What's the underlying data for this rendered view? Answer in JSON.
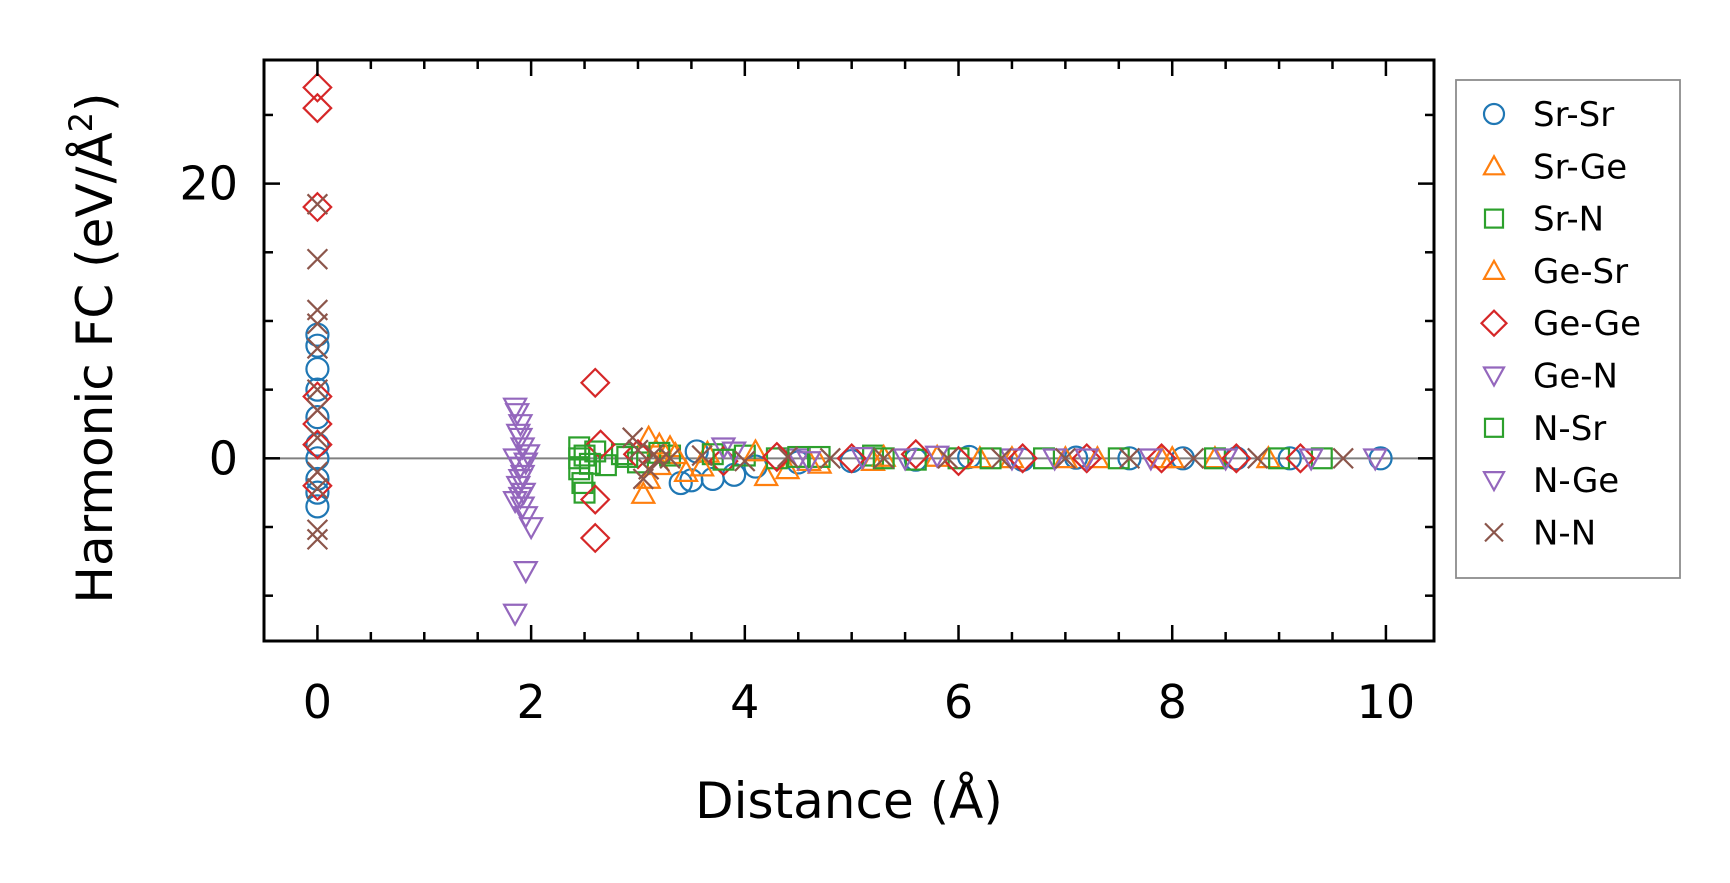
{
  "chart_data": {
    "type": "scatter",
    "title": "",
    "xlabel": "Distance (Å)",
    "ylabel_main": "Harmonic FC (eV/Å",
    "ylabel_sup": "2",
    "ylabel_close": ")",
    "xlim": [
      -0.5,
      10.45
    ],
    "ylim": [
      -13.3,
      29
    ],
    "xticks": [
      0,
      2,
      4,
      6,
      8,
      10
    ],
    "yticks": [
      0,
      20
    ],
    "xtick_labels": [
      "0",
      "2",
      "4",
      "6",
      "8",
      "10"
    ],
    "ytick_labels": [
      "0",
      "20"
    ],
    "zero_line": true,
    "grid": false,
    "legend_position": "outside-right",
    "series": [
      {
        "name": "Sr-Sr",
        "marker": "circle",
        "color": "#1f77b4",
        "points": [
          [
            0,
            9
          ],
          [
            0,
            8.2
          ],
          [
            0,
            6.5
          ],
          [
            0,
            5
          ],
          [
            0,
            3
          ],
          [
            0,
            1
          ],
          [
            0,
            0
          ],
          [
            0,
            -1.5
          ],
          [
            0,
            -2.5
          ],
          [
            0,
            -3.5
          ],
          [
            3.4,
            -1.8
          ],
          [
            3.5,
            -1.6
          ],
          [
            3.55,
            0.5
          ],
          [
            3.7,
            -1.5
          ],
          [
            3.9,
            -1.2
          ],
          [
            4.1,
            -0.6
          ],
          [
            4.5,
            -0.3
          ],
          [
            5.0,
            -0.2
          ],
          [
            5.6,
            -0.1
          ],
          [
            6.1,
            0.1
          ],
          [
            6.6,
            -0.1
          ],
          [
            7.1,
            0.05
          ],
          [
            7.6,
            0
          ],
          [
            8.1,
            0
          ],
          [
            8.6,
            0
          ],
          [
            9.1,
            0
          ],
          [
            9.95,
            0
          ]
        ]
      },
      {
        "name": "Sr-Ge",
        "marker": "triangle-up",
        "color": "#ff7f0e",
        "points": [
          [
            3.05,
            -2.6
          ],
          [
            3.1,
            1.5
          ],
          [
            3.2,
            -0.5
          ],
          [
            3.3,
            0.8
          ],
          [
            3.45,
            -1
          ],
          [
            3.65,
            0.4
          ],
          [
            4.2,
            -1.3
          ],
          [
            4.4,
            -0.8
          ],
          [
            4.7,
            -0.4
          ],
          [
            5.2,
            -0.2
          ],
          [
            5.8,
            0.1
          ],
          [
            6.5,
            0
          ],
          [
            7.3,
            0
          ],
          [
            8.0,
            0
          ],
          [
            8.4,
            0
          ],
          [
            8.9,
            0
          ]
        ]
      },
      {
        "name": "Sr-N",
        "marker": "square",
        "color": "#2ca02c",
        "points": [
          [
            2.45,
            0.8
          ],
          [
            2.45,
            0
          ],
          [
            2.45,
            -0.8
          ],
          [
            2.48,
            -1.8
          ],
          [
            2.5,
            -2.5
          ],
          [
            2.6,
            0.5
          ],
          [
            2.7,
            -0.5
          ],
          [
            2.85,
            0.3
          ],
          [
            3.0,
            -0.3
          ],
          [
            3.3,
            0.2
          ],
          [
            3.7,
            0.3
          ],
          [
            4.0,
            0.2
          ],
          [
            4.3,
            0
          ],
          [
            4.7,
            0.1
          ],
          [
            5.2,
            0.2
          ],
          [
            5.6,
            -0.1
          ],
          [
            6.0,
            0
          ],
          [
            6.8,
            0
          ],
          [
            7.5,
            0
          ],
          [
            8.4,
            0
          ],
          [
            9.0,
            0
          ],
          [
            9.4,
            0
          ]
        ]
      },
      {
        "name": "Ge-Sr",
        "marker": "triangle-up",
        "color": "#ff7f0e",
        "points": [
          [
            3.1,
            -1.5
          ],
          [
            3.2,
            1
          ],
          [
            3.35,
            0.3
          ],
          [
            3.6,
            -0.6
          ],
          [
            4.1,
            0.5
          ],
          [
            4.6,
            -0.2
          ],
          [
            5.3,
            0.1
          ],
          [
            6.2,
            0
          ],
          [
            7.0,
            0
          ],
          [
            7.9,
            0
          ]
        ]
      },
      {
        "name": "Ge-Ge",
        "marker": "diamond",
        "color": "#d62728",
        "points": [
          [
            0,
            27
          ],
          [
            0,
            25.5
          ],
          [
            0,
            18.3
          ],
          [
            0,
            4.5
          ],
          [
            0,
            2.5
          ],
          [
            0,
            1
          ],
          [
            0,
            -2
          ],
          [
            2.6,
            5.5
          ],
          [
            2.6,
            -3
          ],
          [
            2.6,
            -5.8
          ],
          [
            2.65,
            1
          ],
          [
            3.0,
            0.3
          ],
          [
            3.8,
            -0.2
          ],
          [
            4.3,
            0.1
          ],
          [
            5.0,
            0
          ],
          [
            5.6,
            0.3
          ],
          [
            6.0,
            -0.2
          ],
          [
            6.6,
            0
          ],
          [
            7.2,
            0
          ],
          [
            7.9,
            0
          ],
          [
            8.6,
            0
          ],
          [
            9.2,
            0
          ]
        ]
      },
      {
        "name": "Ge-N",
        "marker": "triangle-down",
        "color": "#9467bd",
        "points": [
          [
            1.85,
            3.7
          ],
          [
            1.87,
            3.3
          ],
          [
            1.9,
            2.5
          ],
          [
            1.9,
            1.5
          ],
          [
            1.92,
            0.8
          ],
          [
            1.85,
            0
          ],
          [
            1.9,
            -0.6
          ],
          [
            1.92,
            -1.2
          ],
          [
            1.88,
            -2
          ],
          [
            1.9,
            -2.8
          ],
          [
            1.92,
            -3.5
          ],
          [
            1.95,
            -4.2
          ],
          [
            1.85,
            -3.1
          ],
          [
            2.0,
            -5
          ],
          [
            1.95,
            -8.2
          ],
          [
            1.85,
            -11.3
          ],
          [
            1.97,
            0.3
          ],
          [
            3.8,
            0.8
          ],
          [
            3.9,
            0.5
          ],
          [
            4.5,
            0
          ],
          [
            5.1,
            0.1
          ],
          [
            5.8,
            0.2
          ],
          [
            6.5,
            0
          ],
          [
            7.2,
            0
          ],
          [
            7.8,
            0
          ],
          [
            8.5,
            0
          ],
          [
            9.3,
            0
          ],
          [
            9.9,
            0
          ]
        ]
      },
      {
        "name": "N-Sr",
        "marker": "square",
        "color": "#2ca02c",
        "points": [
          [
            2.5,
            0.2
          ],
          [
            2.55,
            -0.4
          ],
          [
            2.9,
            0.1
          ],
          [
            3.2,
            0.4
          ],
          [
            3.8,
            -0.1
          ],
          [
            4.5,
            0.1
          ],
          [
            5.3,
            0
          ],
          [
            6.3,
            0
          ]
        ]
      },
      {
        "name": "N-Ge",
        "marker": "triangle-down",
        "color": "#9467bd",
        "points": [
          [
            1.88,
            1.8
          ],
          [
            1.9,
            -1.5
          ],
          [
            1.93,
            -2.5
          ],
          [
            1.95,
            -0.3
          ],
          [
            4.6,
            -0.2
          ],
          [
            5.5,
            0
          ],
          [
            6.9,
            0
          ]
        ]
      },
      {
        "name": "N-N",
        "marker": "x",
        "color": "#8c564b",
        "points": [
          [
            0,
            18.5
          ],
          [
            0,
            14.5
          ],
          [
            0,
            10.8
          ],
          [
            0,
            9.8
          ],
          [
            0,
            8
          ],
          [
            0,
            5
          ],
          [
            0,
            3.5
          ],
          [
            0,
            1.5
          ],
          [
            0,
            -1
          ],
          [
            0,
            -2.2
          ],
          [
            0,
            -5.2
          ],
          [
            0,
            -5.9
          ],
          [
            2.95,
            1.5
          ],
          [
            3.0,
            0.6
          ],
          [
            3.05,
            -1.5
          ],
          [
            3.1,
            -0.8
          ],
          [
            3.15,
            0.3
          ],
          [
            3.2,
            -0.2
          ],
          [
            3.3,
            0
          ],
          [
            3.6,
            0.2
          ],
          [
            4.0,
            -0.2
          ],
          [
            4.4,
            0.1
          ],
          [
            4.8,
            0
          ],
          [
            5.3,
            0
          ],
          [
            5.9,
            0
          ],
          [
            6.4,
            0
          ],
          [
            7.0,
            0
          ],
          [
            7.6,
            0
          ],
          [
            8.2,
            0
          ],
          [
            8.8,
            0
          ],
          [
            9.6,
            0
          ]
        ]
      }
    ]
  }
}
